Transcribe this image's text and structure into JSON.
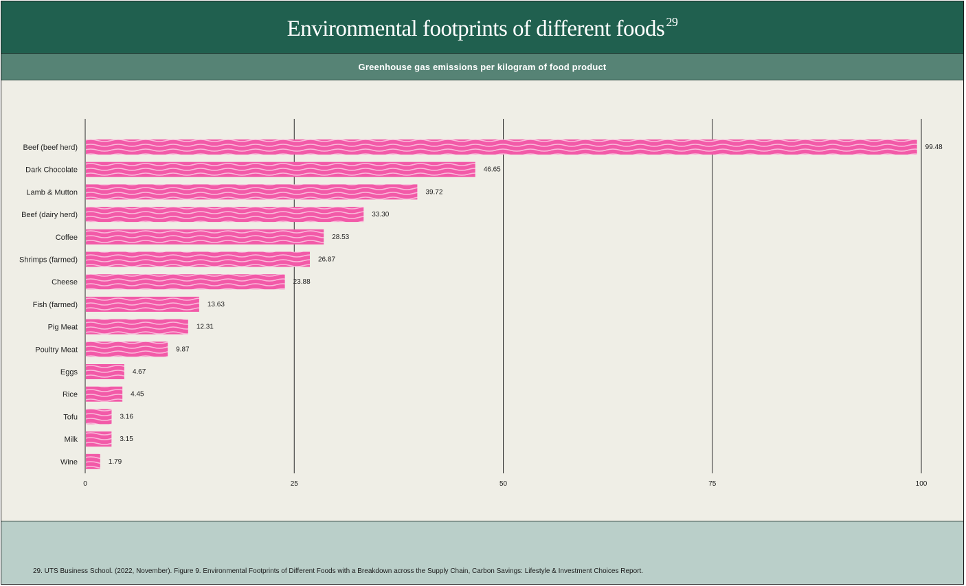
{
  "header": {
    "title": "Environmental footprints of different foods",
    "footnote_ref": "29",
    "subtitle": "Greenhouse gas emissions per kilogram of food product"
  },
  "footer": {
    "citation": "29. UTS Business School. (2022, November). Figure 9. Environmental Footprints of Different Foods with a Breakdown across the Supply Chain, Carbon Savings: Lifestyle & Investment Choices Report."
  },
  "colors": {
    "bar": "#f25aa8",
    "bar_wave": "#fbc3e0",
    "title_bg": "#20604f",
    "subtitle_bg": "#568375",
    "background": "#efeee6",
    "footer_bg": "#bacfc9"
  },
  "chart_data": {
    "type": "bar",
    "orientation": "horizontal",
    "categories": [
      "Beef (beef herd)",
      "Dark Chocolate",
      "Lamb & Mutton",
      "Beef (dairy herd)",
      "Coffee",
      "Shrimps (farmed)",
      "Cheese",
      "Fish (farmed)",
      "Pig Meat",
      "Poultry Meat",
      "Eggs",
      "Rice",
      "Tofu",
      "Milk",
      "Wine"
    ],
    "values": [
      99.48,
      46.65,
      39.72,
      33.3,
      28.53,
      26.87,
      23.88,
      13.63,
      12.31,
      9.87,
      4.67,
      4.45,
      3.16,
      3.15,
      1.79
    ],
    "value_labels": [
      "99.48",
      "46.65",
      "39.72",
      "33.30",
      "28.53",
      "26.87",
      "23.88",
      "13.63",
      "12.31",
      "9.87",
      "4.67",
      "4.45",
      "3.16",
      "3.15",
      "1.79"
    ],
    "xlim": [
      0,
      100
    ],
    "xticks": [
      0,
      25,
      50,
      75,
      100
    ],
    "xtick_labels": [
      "0",
      "25",
      "50",
      "75",
      "100"
    ],
    "grid": "vertical",
    "legend": "none"
  }
}
